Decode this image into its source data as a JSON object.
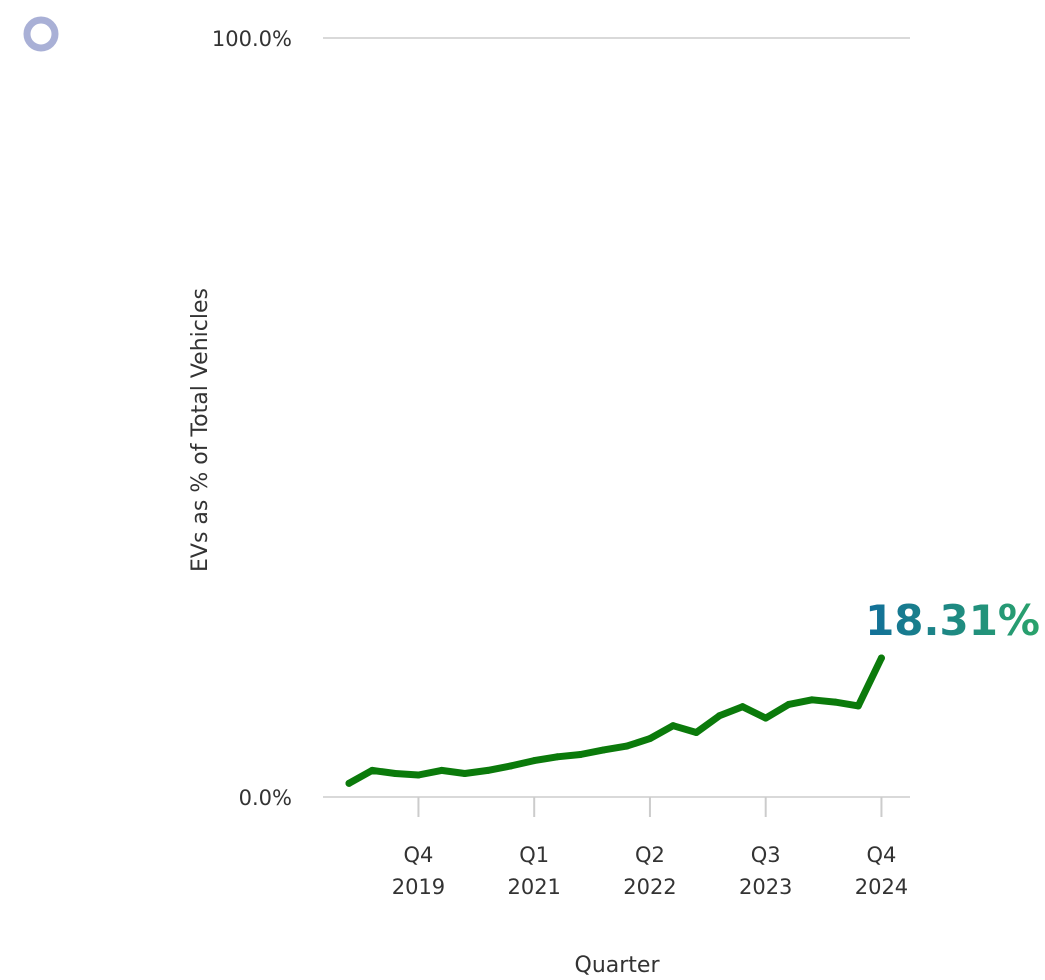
{
  "chart_data": {
    "type": "line",
    "xlabel": "Quarter",
    "ylabel": "EVs as % of Total Vehicles",
    "ylim": [
      0,
      100
    ],
    "y_tick_labels": [
      "0.0%",
      "100.0%"
    ],
    "x_tick_labels": [
      [
        "Q4",
        "2019"
      ],
      [
        "Q1",
        "2021"
      ],
      [
        "Q2",
        "2022"
      ],
      [
        "Q3",
        "2023"
      ],
      [
        "Q4",
        "2024"
      ]
    ],
    "grid": "horizontal",
    "series": [
      {
        "color": "#0b7a0b",
        "x": [
          "Q1 2019",
          "Q2 2019",
          "Q3 2019",
          "Q4 2019",
          "Q1 2020",
          "Q2 2020",
          "Q3 2020",
          "Q4 2020",
          "Q1 2021",
          "Q2 2021",
          "Q3 2021",
          "Q4 2021",
          "Q1 2022",
          "Q2 2022",
          "Q3 2022",
          "Q4 2022",
          "Q1 2023",
          "Q2 2023",
          "Q3 2023",
          "Q4 2023",
          "Q1 2024",
          "Q2 2024",
          "Q3 2024",
          "Q4 2024"
        ],
        "values": [
          1.8,
          3.5,
          3.1,
          2.9,
          3.5,
          3.1,
          3.5,
          4.1,
          4.8,
          5.3,
          5.6,
          6.2,
          6.7,
          7.7,
          9.4,
          8.5,
          10.7,
          11.9,
          10.4,
          12.2,
          12.8,
          12.5,
          12.0,
          18.31
        ]
      }
    ],
    "annotation": {
      "text": "18.31%",
      "color_start": "#126f9a",
      "color_end": "#2aa36b"
    }
  },
  "legend_marker": {
    "icon": "circle-outline-icon",
    "color": "#a9b0d6"
  }
}
